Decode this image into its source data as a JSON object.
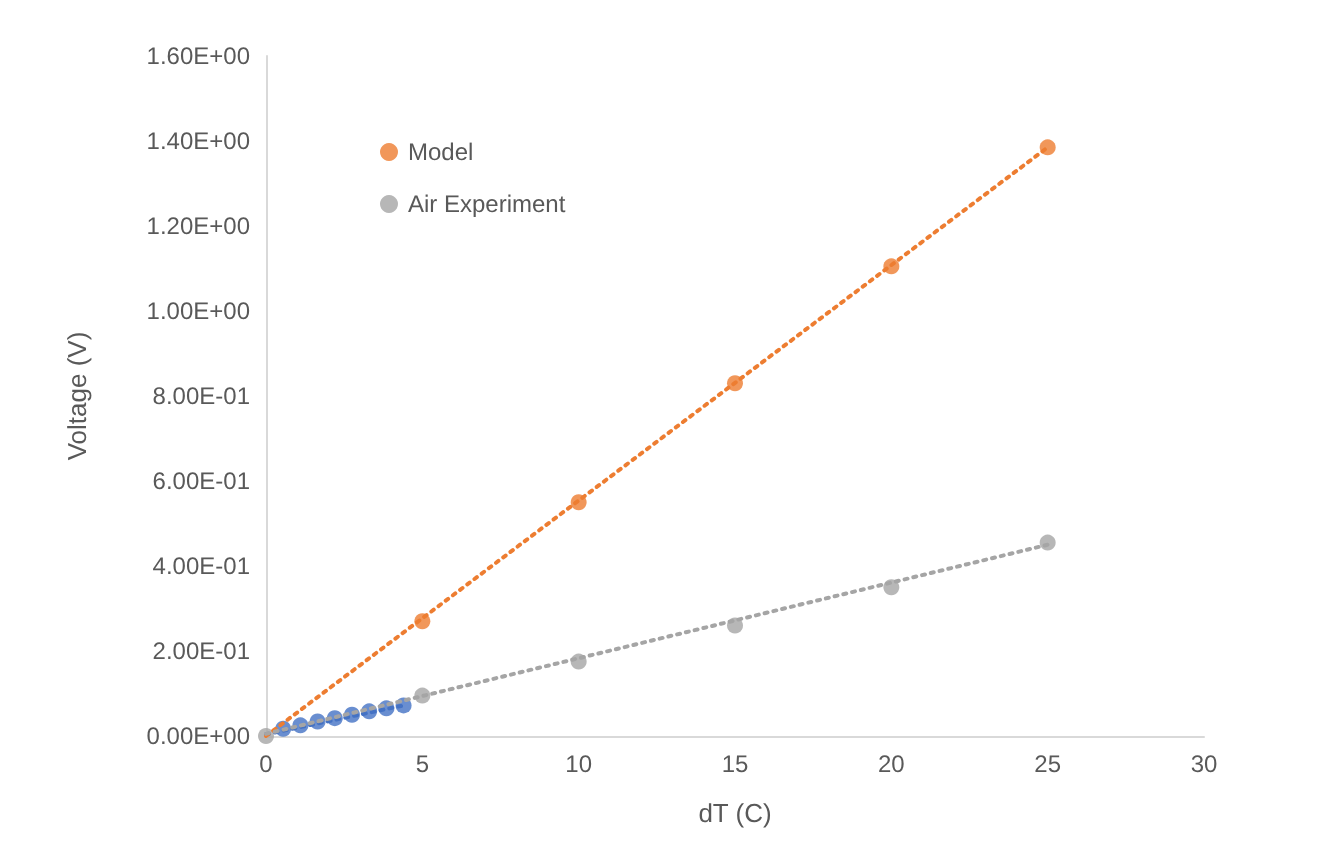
{
  "chart_data": {
    "type": "scatter",
    "xlabel": "dT (C)",
    "ylabel": "Voltage (V)",
    "series": [
      {
        "color": "#4472c4",
        "x": [
          0.55,
          1.1,
          1.65,
          2.2,
          2.75,
          3.3,
          3.85,
          4.4
        ],
        "values": [
          0.017,
          0.025,
          0.034,
          0.042,
          0.05,
          0.058,
          0.065,
          0.072
        ]
      },
      {
        "name": "Model",
        "color": "#ed7d31",
        "x": [
          5,
          10,
          15,
          20,
          25
        ],
        "values": [
          0.27,
          0.55,
          0.83,
          1.105,
          1.385
        ]
      },
      {
        "name": "Air Experiment",
        "color": "#a5a5a5",
        "x": [
          0,
          5,
          10,
          15,
          20,
          25
        ],
        "values": [
          0,
          0.095,
          0.175,
          0.26,
          0.35,
          0.455
        ]
      },
      {
        "type": "line",
        "color": "#4472c4",
        "x": [
          0,
          4.4
        ],
        "values": [
          0.004,
          0.072
        ],
        "marker": "none",
        "line_style": "dotted"
      },
      {
        "type": "line",
        "color": "#ed7d31",
        "x": [
          0,
          25
        ],
        "values": [
          0,
          1.385
        ],
        "marker": "none",
        "line_style": "dotted"
      },
      {
        "type": "line",
        "color": "#a5a5a5",
        "x": [
          0,
          25
        ],
        "values": [
          0.005,
          0.45
        ],
        "marker": "none",
        "line_style": "dotted"
      }
    ],
    "xlim": [
      0,
      30
    ],
    "xticks": [
      0,
      5,
      10,
      15,
      20,
      25,
      30
    ],
    "ylim": [
      0,
      1.6
    ],
    "yticks": [
      {
        "value": 0,
        "label": "0.00E+00"
      },
      {
        "value": 0.2,
        "label": "2.00E-01"
      },
      {
        "value": 0.4,
        "label": "4.00E-01"
      },
      {
        "value": 0.6,
        "label": "6.00E-01"
      },
      {
        "value": 0.8,
        "label": "8.00E-01"
      },
      {
        "value": 1,
        "label": "1.00E+00"
      },
      {
        "value": 1.2,
        "label": "1.20E+00"
      },
      {
        "value": 1.4,
        "label": "1.40E+00"
      },
      {
        "value": 1.6,
        "label": "1.60E+00"
      }
    ],
    "grid": false,
    "legend": "top left",
    "marker": "circle"
  }
}
